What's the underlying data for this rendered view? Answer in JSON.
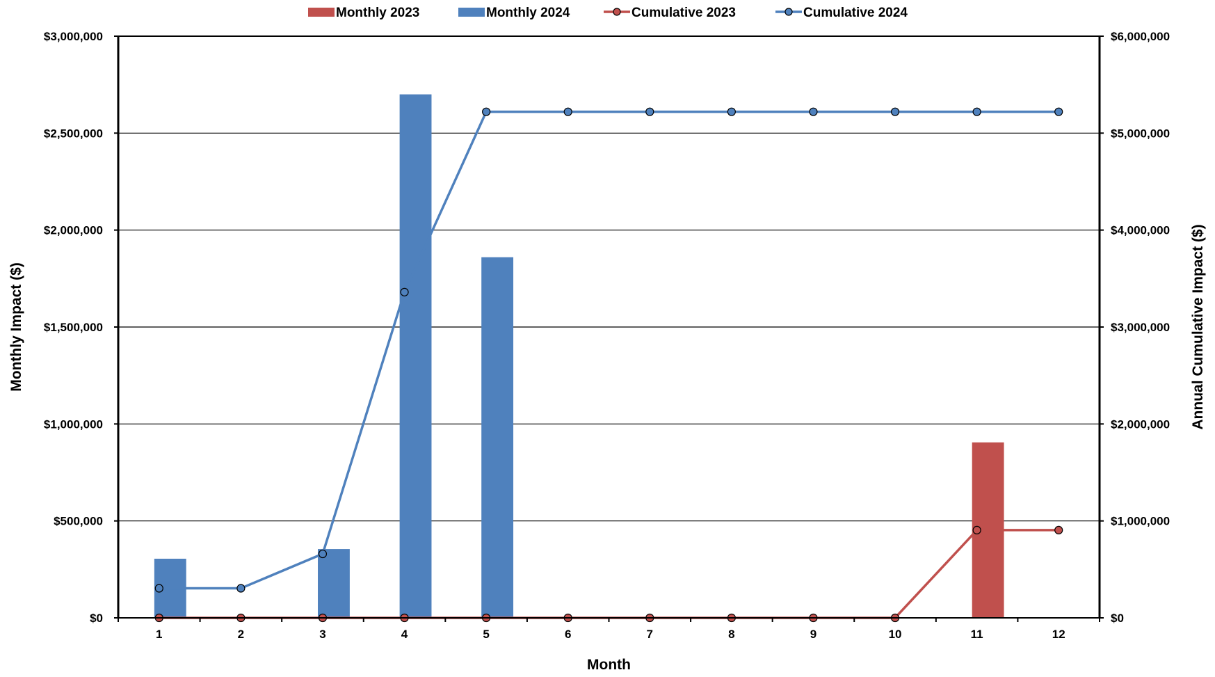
{
  "chart_data": {
    "type": "bar",
    "x": [
      1,
      2,
      3,
      4,
      5,
      6,
      7,
      8,
      9,
      10,
      11,
      12
    ],
    "series": [
      {
        "name": "Monthly 2023",
        "kind": "bar",
        "axis": "left",
        "color": "#C0504D",
        "values": [
          0,
          0,
          0,
          0,
          0,
          0,
          0,
          0,
          0,
          0,
          905000,
          0
        ]
      },
      {
        "name": "Monthly 2024",
        "kind": "bar",
        "axis": "left",
        "color": "#4F81BD",
        "values": [
          305000,
          0,
          355000,
          2700000,
          1860000,
          0,
          0,
          0,
          0,
          0,
          0,
          0
        ]
      },
      {
        "name": "Cumulative 2023",
        "kind": "line",
        "axis": "right",
        "color": "#C0504D",
        "values": [
          0,
          0,
          0,
          0,
          0,
          0,
          0,
          0,
          0,
          0,
          905000,
          905000
        ]
      },
      {
        "name": "Cumulative 2024",
        "kind": "line",
        "axis": "right",
        "color": "#4F81BD",
        "values": [
          305000,
          305000,
          660000,
          3360000,
          5220000,
          5220000,
          5220000,
          5220000,
          5220000,
          5220000,
          5220000,
          5220000
        ]
      }
    ],
    "xlabel": "Month",
    "ylabel": "Monthly Impact ($)",
    "y2label": "Annual Cumulative Impact ($)",
    "ylim": [
      0,
      3000000
    ],
    "y2lim": [
      0,
      6000000
    ],
    "y_ticks": [
      "$0",
      "$500,000",
      "$1,000,000",
      "$1,500,000",
      "$2,000,000",
      "$2,500,000",
      "$3,000,000"
    ],
    "y2_ticks": [
      "$0",
      "$1,000,000",
      "$2,000,000",
      "$3,000,000",
      "$4,000,000",
      "$5,000,000",
      "$6,000,000"
    ],
    "x_ticks": [
      "1",
      "2",
      "3",
      "4",
      "5",
      "6",
      "7",
      "8",
      "9",
      "10",
      "11",
      "12"
    ],
    "grid": true,
    "legend": "top"
  }
}
